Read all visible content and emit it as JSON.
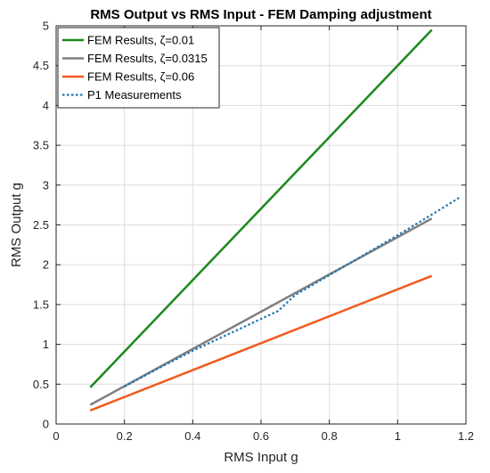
{
  "chart_data": {
    "type": "line",
    "title": "RMS Output vs RMS Input - FEM Damping adjustment",
    "xlabel": "RMS Input g",
    "ylabel": "RMS Output g",
    "xlim": [
      0,
      1.2
    ],
    "ylim": [
      0,
      5
    ],
    "xticks": [
      "0",
      "0.2",
      "0.4",
      "0.6",
      "0.8",
      "1",
      "1.2"
    ],
    "yticks": [
      "0",
      "0.5",
      "1",
      "1.5",
      "2",
      "2.5",
      "3",
      "3.5",
      "4",
      "4.5",
      "5"
    ],
    "grid": true,
    "legend_position": "top-left",
    "series": [
      {
        "name": "FEM Results, ζ=0.01",
        "color": "#1a8a1a",
        "style": "solid",
        "x": [
          0.1,
          1.1
        ],
        "y": [
          0.46,
          4.95
        ]
      },
      {
        "name": "FEM Results, ζ=0.0315",
        "color": "#808080",
        "style": "solid",
        "x": [
          0.1,
          1.1
        ],
        "y": [
          0.24,
          2.58
        ]
      },
      {
        "name": "FEM Results, ζ=0.06",
        "color": "#f05a1e",
        "style": "solid",
        "x": [
          0.1,
          1.1
        ],
        "y": [
          0.17,
          1.86
        ]
      },
      {
        "name": "P1 Measurements",
        "color": "#1f77b4",
        "style": "dotted",
        "x": [
          0.2,
          0.3,
          0.4,
          0.5,
          0.6,
          0.65,
          0.7,
          0.8,
          0.9,
          1.0,
          1.1,
          1.18
        ],
        "y": [
          0.47,
          0.7,
          0.92,
          1.12,
          1.32,
          1.42,
          1.62,
          1.87,
          2.12,
          2.37,
          2.63,
          2.84
        ]
      }
    ]
  }
}
